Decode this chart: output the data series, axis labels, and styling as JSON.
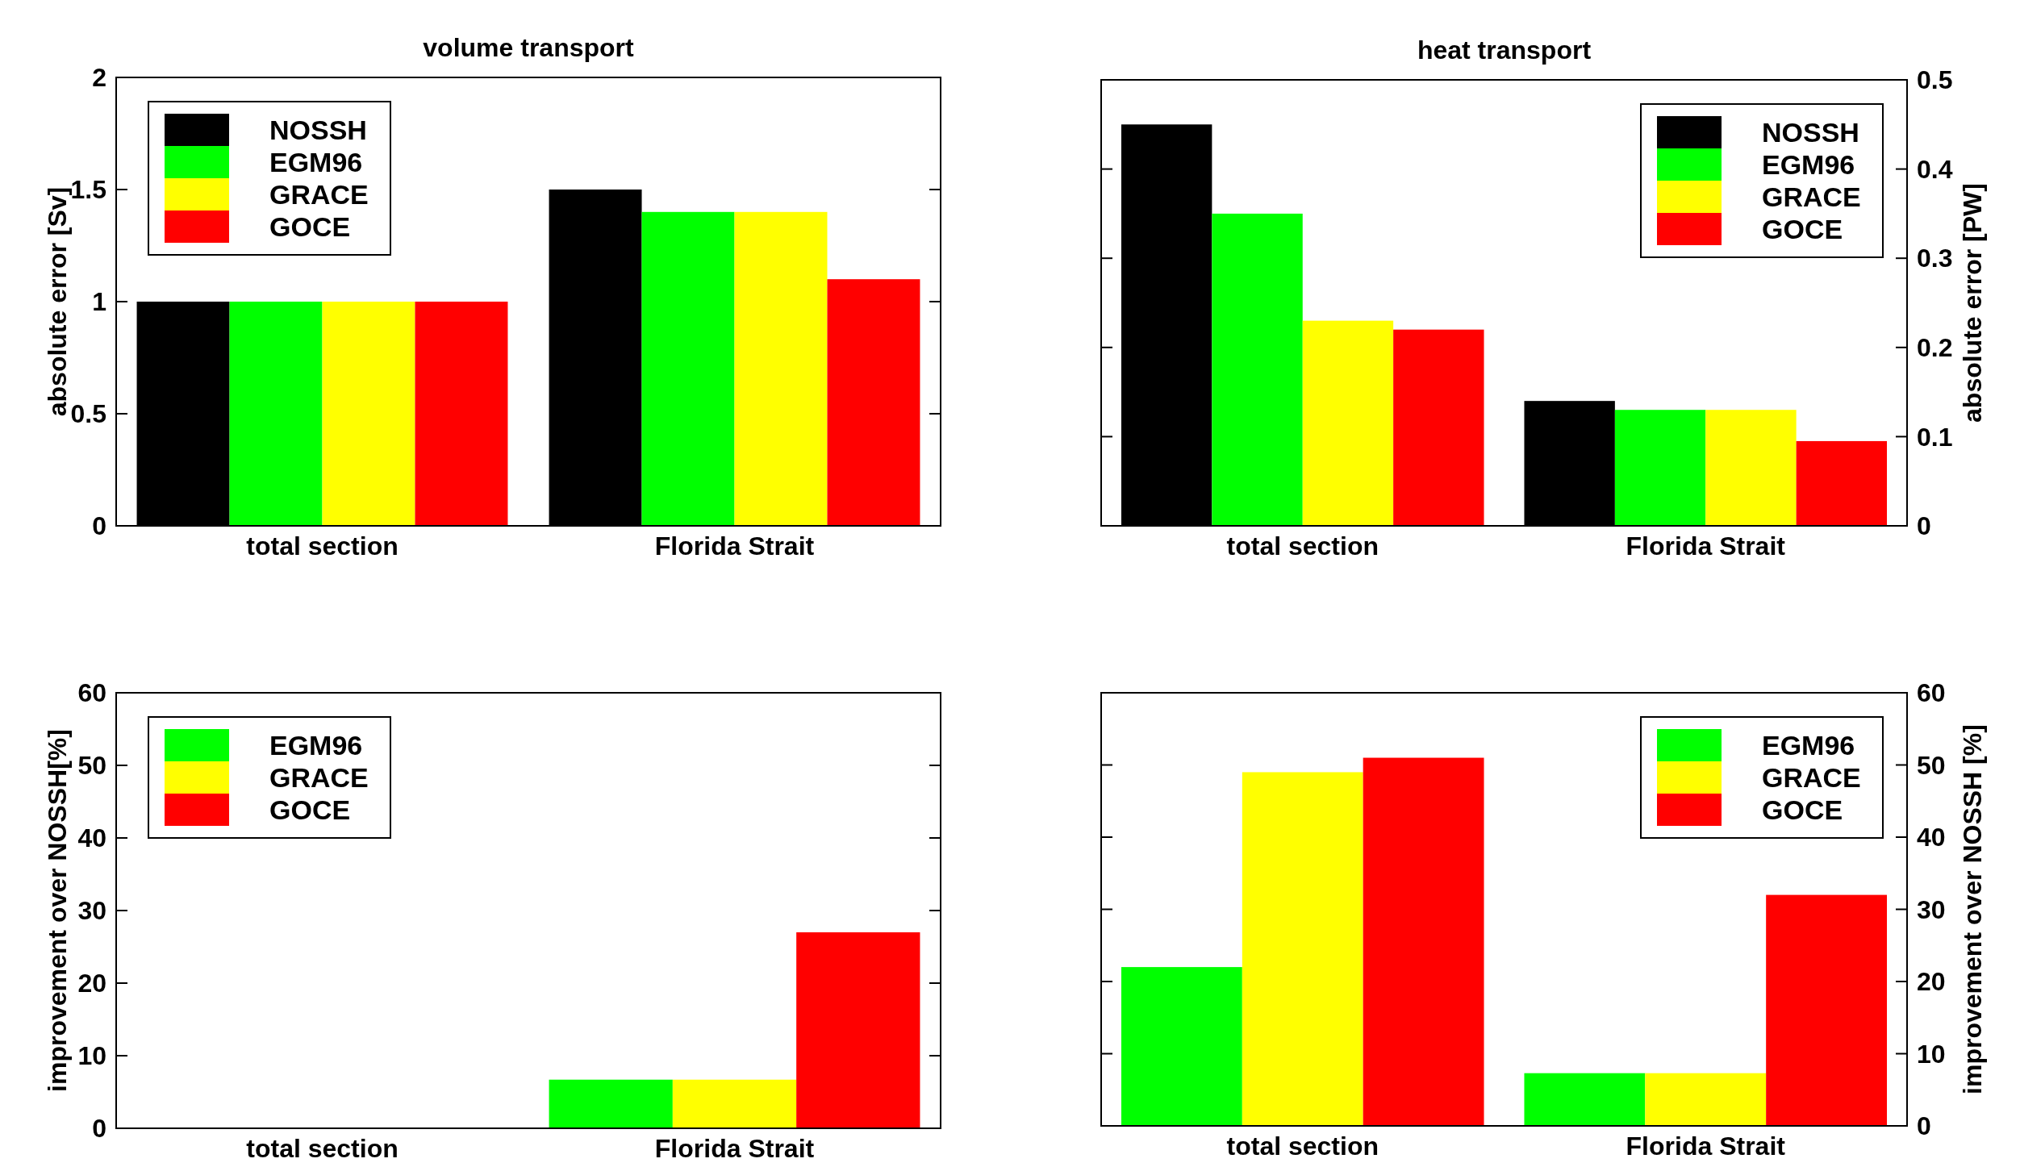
{
  "chart_data": [
    {
      "type": "bar",
      "title": "volume transport",
      "ylabel": "absolute error [Sv]",
      "categories": [
        "total section",
        "Florida Strait"
      ],
      "ylim": [
        0,
        2
      ],
      "yticks": [
        0,
        0.5,
        1,
        1.5,
        2
      ],
      "legend": "top left",
      "grid": false,
      "series": [
        {
          "name": "NOSSH",
          "color": "#000000",
          "values": [
            1.0,
            1.5
          ]
        },
        {
          "name": "EGM96",
          "color": "#00ff00",
          "values": [
            1.0,
            1.4
          ]
        },
        {
          "name": "GRACE",
          "color": "#ffff00",
          "values": [
            1.0,
            1.4
          ]
        },
        {
          "name": "GOCE",
          "color": "#ff0000",
          "values": [
            1.0,
            1.1
          ]
        }
      ]
    },
    {
      "type": "bar",
      "title": "heat transport",
      "y2label": "absolute error [PW]",
      "categories": [
        "total section",
        "Florida Strait"
      ],
      "y2lim": [
        0,
        0.5
      ],
      "y2ticks": [
        0,
        0.1,
        0.2,
        0.3,
        0.4,
        0.5
      ],
      "legend": "top right",
      "grid": false,
      "series": [
        {
          "name": "NOSSH",
          "color": "#000000",
          "values": [
            0.45,
            0.14
          ],
          "axis": "y2"
        },
        {
          "name": "EGM96",
          "color": "#00ff00",
          "values": [
            0.35,
            0.13
          ],
          "axis": "y2"
        },
        {
          "name": "GRACE",
          "color": "#ffff00",
          "values": [
            0.23,
            0.13
          ],
          "axis": "y2"
        },
        {
          "name": "GOCE",
          "color": "#ff0000",
          "values": [
            0.22,
            0.095
          ],
          "axis": "y2"
        }
      ]
    },
    {
      "type": "bar",
      "ylabel": "improvement over NOSSH[%]",
      "categories": [
        "total section",
        "Florida Strait"
      ],
      "ylim": [
        0,
        60
      ],
      "yticks": [
        0,
        10,
        20,
        30,
        40,
        50,
        60
      ],
      "legend": "top left",
      "grid": false,
      "series": [
        {
          "name": "EGM96",
          "color": "#00ff00",
          "values": [
            0,
            6.7
          ]
        },
        {
          "name": "GRACE",
          "color": "#ffff00",
          "values": [
            0,
            6.7
          ]
        },
        {
          "name": "GOCE",
          "color": "#ff0000",
          "values": [
            0,
            27
          ]
        }
      ]
    },
    {
      "type": "bar",
      "y2label": "improvement over NOSSH [%]",
      "categories": [
        "total section",
        "Florida Strait"
      ],
      "y2lim": [
        0,
        60
      ],
      "y2ticks": [
        0,
        10,
        20,
        30,
        40,
        50,
        60
      ],
      "legend": "top right",
      "grid": false,
      "series": [
        {
          "name": "EGM96",
          "color": "#00ff00",
          "values": [
            22,
            7.3
          ],
          "axis": "y2"
        },
        {
          "name": "GRACE",
          "color": "#ffff00",
          "values": [
            49,
            7.3
          ],
          "axis": "y2"
        },
        {
          "name": "GOCE",
          "color": "#ff0000",
          "values": [
            51,
            32
          ],
          "axis": "y2"
        }
      ]
    }
  ]
}
